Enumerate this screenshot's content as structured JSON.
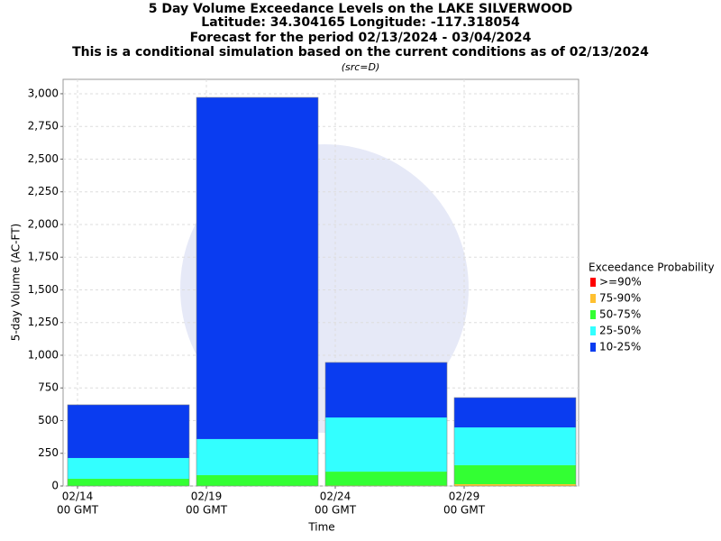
{
  "chart_data": {
    "type": "stacked_bar",
    "title": "5 Day Volume Exceedance Levels on the LAKE SILVERWOOD",
    "subtitle_lines": [
      "Latitude: 34.304165 Longitude: -117.318054",
      "Forecast for the period 02/13/2024 - 03/04/2024",
      "This is a conditional simulation based on the current conditions as of 02/13/2024"
    ],
    "source_note": "(src=D)",
    "y_label": "5-day Volume (AC-FT)",
    "x_label": "Time",
    "categories": [
      null,
      null,
      null,
      null
    ],
    "xticks": [
      "02/14",
      "02/19",
      "02/24",
      "02/29"
    ],
    "xtick_sublabel": "00 GMT",
    "legend_title": "Exceedance Probability",
    "legend_position": "right",
    "grid": true,
    "ylim": [
      0,
      3110
    ],
    "yticks": [
      {
        "value": 0,
        "label": "0"
      },
      {
        "value": 250,
        "label": "250"
      },
      {
        "value": 500,
        "label": "500"
      },
      {
        "value": 750,
        "label": "750"
      },
      {
        "value": 1000,
        "label": "1,000"
      },
      {
        "value": 1250,
        "label": "1,250"
      },
      {
        "value": 1500,
        "label": "1,500"
      },
      {
        "value": 1750,
        "label": "1,750"
      },
      {
        "value": 2000,
        "label": "2,000"
      },
      {
        "value": 2250,
        "label": "2,250"
      },
      {
        "value": 2500,
        "label": "2,500"
      },
      {
        "value": 2750,
        "label": "2,750"
      },
      {
        "value": 3000,
        "label": "3,000"
      }
    ],
    "series": [
      {
        "name": ">=90%",
        "color": "#ff0000",
        "values": [
          0,
          0,
          0,
          0
        ]
      },
      {
        "name": "75-90%",
        "color": "#ffc030",
        "values": [
          0,
          0,
          3,
          14
        ]
      },
      {
        "name": "50-75%",
        "color": "#33ff33",
        "values": [
          55,
          83,
          107,
          145
        ]
      },
      {
        "name": "25-50%",
        "color": "#33ffff",
        "values": [
          159,
          276,
          414,
          289
        ]
      },
      {
        "name": "10-25%",
        "color": "#0a3cf0",
        "values": [
          407,
          2613,
          421,
          228
        ]
      }
    ]
  }
}
